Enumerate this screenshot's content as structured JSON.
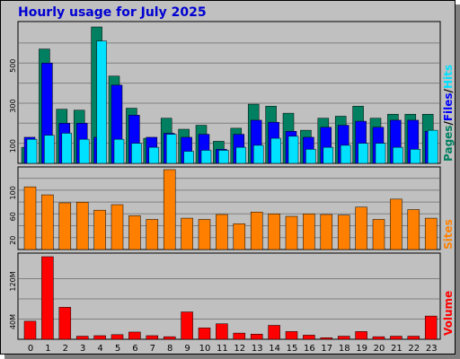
{
  "title": "Hourly usage for July 2025",
  "colors": {
    "pages": "#008060",
    "files": "#0000ff",
    "hits": "#00e0ff",
    "sites": "#ff8000",
    "volume": "#ff0000",
    "slash": "#000000"
  },
  "labels": {
    "pages": "Pages",
    "files": "Files",
    "hits": "Hits",
    "sites": "Sites",
    "volume": "Volume",
    "slash1": "/",
    "slash2": "/"
  },
  "chart_data": [
    {
      "type": "bar",
      "title": "Hourly usage for July 2025",
      "categories": [
        "0",
        "1",
        "2",
        "3",
        "4",
        "5",
        "6",
        "7",
        "8",
        "9",
        "10",
        "11",
        "12",
        "13",
        "14",
        "15",
        "16",
        "17",
        "18",
        "19",
        "20",
        "21",
        "22",
        "23"
      ],
      "y_ticks": [
        "100",
        "300",
        "500"
      ],
      "ylim": [
        0,
        680
      ],
      "grid": true,
      "series": [
        {
          "name": "Pages",
          "values": [
            80,
            570,
            270,
            265,
            680,
            435,
            275,
            125,
            225,
            170,
            190,
            110,
            175,
            295,
            285,
            250,
            165,
            225,
            235,
            285,
            225,
            245,
            245,
            245
          ]
        },
        {
          "name": "Files",
          "values": [
            130,
            500,
            200,
            200,
            130,
            390,
            240,
            130,
            150,
            130,
            145,
            70,
            145,
            215,
            205,
            160,
            130,
            180,
            190,
            210,
            180,
            215,
            215,
            160
          ]
        },
        {
          "name": "Hits",
          "values": [
            120,
            140,
            150,
            120,
            610,
            120,
            100,
            80,
            145,
            60,
            65,
            65,
            80,
            90,
            125,
            135,
            70,
            80,
            90,
            100,
            100,
            80,
            70,
            165
          ]
        }
      ]
    },
    {
      "type": "bar",
      "categories": [
        "0",
        "1",
        "2",
        "3",
        "4",
        "5",
        "6",
        "7",
        "8",
        "9",
        "10",
        "11",
        "12",
        "13",
        "14",
        "15",
        "16",
        "17",
        "18",
        "19",
        "20",
        "21",
        "22",
        "23"
      ],
      "y_ticks": [
        "20",
        "60",
        "100"
      ],
      "ylim": [
        0,
        130
      ],
      "grid": true,
      "series": [
        {
          "name": "Sites",
          "values": [
            102,
            89,
            76,
            77,
            64,
            73,
            55,
            49,
            130,
            51,
            49,
            57,
            42,
            61,
            58,
            54,
            58,
            57,
            56,
            69,
            49,
            82,
            65,
            51
          ]
        }
      ]
    },
    {
      "type": "bar",
      "categories": [
        "0",
        "1",
        "2",
        "3",
        "4",
        "5",
        "6",
        "7",
        "8",
        "9",
        "10",
        "11",
        "12",
        "13",
        "14",
        "15",
        "16",
        "17",
        "18",
        "19",
        "20",
        "21",
        "22",
        "23"
      ],
      "y_ticks": [
        "40M",
        "120M"
      ],
      "ylim": [
        0,
        160
      ],
      "grid": true,
      "series": [
        {
          "name": "Volume",
          "values": [
            35,
            160,
            62,
            6,
            7,
            9,
            14,
            7,
            5,
            53,
            22,
            30,
            12,
            10,
            27,
            15,
            8,
            3,
            6,
            15,
            5,
            6,
            6,
            45
          ]
        }
      ]
    }
  ]
}
